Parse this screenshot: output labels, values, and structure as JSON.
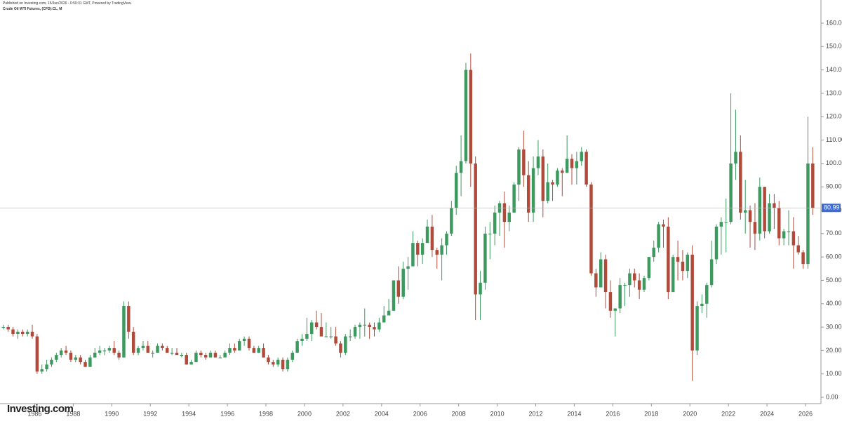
{
  "header": {
    "published": "Published on Investing.com, 15/Jun/2026 - 0:50:31 GMT, Powered by TradingView.",
    "title": "Crude Oil WTI Futures, (CFD):CL, M"
  },
  "logo": "Investing.com",
  "chart_data": {
    "type": "candlestick",
    "up_color": "#3c9a5f",
    "down_color": "#b04a3a",
    "last_price": {
      "value": 80.99,
      "label": "80.99"
    },
    "xlim": [
      1984.2,
      2026.8
    ],
    "ylim": [
      -2.7,
      169.9
    ],
    "xticks": [
      1986,
      1988,
      1990,
      1992,
      1994,
      1996,
      1998,
      2000,
      2002,
      2004,
      2006,
      2008,
      2010,
      2012,
      2014,
      2016,
      2018,
      2020,
      2022,
      2024,
      2026
    ],
    "yticks": [
      {
        "value": 0,
        "label": "0.00"
      },
      {
        "value": 10,
        "label": "10.00"
      },
      {
        "value": 20,
        "label": "20.00"
      },
      {
        "value": 30,
        "label": "30.00"
      },
      {
        "value": 40,
        "label": "40.00"
      },
      {
        "value": 50,
        "label": "50.00"
      },
      {
        "value": 60,
        "label": "60.00"
      },
      {
        "value": 70,
        "label": "70.00"
      },
      {
        "value": 80,
        "label": "80.00"
      },
      {
        "value": 90,
        "label": "90.00"
      },
      {
        "value": 100,
        "label": "100.00"
      },
      {
        "value": 110,
        "label": "110.00"
      },
      {
        "value": 120,
        "label": "120.00"
      },
      {
        "value": 130,
        "label": "130.00"
      },
      {
        "value": 140,
        "label": "140.00"
      },
      {
        "value": 150,
        "label": "150.00"
      },
      {
        "value": 160,
        "label": "160.00"
      }
    ],
    "x": [
      1984.375,
      1984.625,
      1984.875,
      1985.125,
      1985.375,
      1985.625,
      1985.875,
      1986.125,
      1986.375,
      1986.625,
      1986.875,
      1987.125,
      1987.375,
      1987.625,
      1987.875,
      1988.125,
      1988.375,
      1988.625,
      1988.875,
      1989.125,
      1989.375,
      1989.625,
      1989.875,
      1990.125,
      1990.375,
      1990.625,
      1990.875,
      1991.125,
      1991.375,
      1991.625,
      1991.875,
      1992.125,
      1992.375,
      1992.625,
      1992.875,
      1993.125,
      1993.375,
      1993.625,
      1993.875,
      1994.125,
      1994.375,
      1994.625,
      1994.875,
      1995.125,
      1995.375,
      1995.625,
      1995.875,
      1996.125,
      1996.375,
      1996.625,
      1996.875,
      1997.125,
      1997.375,
      1997.625,
      1997.875,
      1998.125,
      1998.375,
      1998.625,
      1998.875,
      1999.125,
      1999.375,
      1999.625,
      1999.875,
      2000.125,
      2000.375,
      2000.625,
      2000.875,
      2001.125,
      2001.375,
      2001.625,
      2001.875,
      2002.125,
      2002.375,
      2002.625,
      2002.875,
      2003.125,
      2003.375,
      2003.625,
      2003.875,
      2004.125,
      2004.375,
      2004.625,
      2004.875,
      2005.125,
      2005.375,
      2005.625,
      2005.875,
      2006.125,
      2006.375,
      2006.625,
      2006.875,
      2007.125,
      2007.375,
      2007.625,
      2007.875,
      2008.125,
      2008.375,
      2008.625,
      2008.875,
      2009.125,
      2009.375,
      2009.625,
      2009.875,
      2010.125,
      2010.375,
      2010.625,
      2010.875,
      2011.125,
      2011.375,
      2011.625,
      2011.875,
      2012.125,
      2012.375,
      2012.625,
      2012.875,
      2013.125,
      2013.375,
      2013.625,
      2013.875,
      2014.125,
      2014.375,
      2014.625,
      2014.875,
      2015.125,
      2015.375,
      2015.625,
      2015.875,
      2016.125,
      2016.375,
      2016.625,
      2016.875,
      2017.125,
      2017.375,
      2017.625,
      2017.875,
      2018.125,
      2018.375,
      2018.625,
      2018.875,
      2019.125,
      2019.375,
      2019.625,
      2019.875,
      2020.125,
      2020.375,
      2020.625,
      2020.875,
      2021.125,
      2021.375,
      2021.625,
      2021.875,
      2022.125,
      2022.375,
      2022.625,
      2022.875,
      2023.125,
      2023.375,
      2023.625,
      2023.875,
      2024.125,
      2024.375,
      2024.625,
      2024.875,
      2025.125,
      2025.375,
      2025.625,
      2025.875,
      2026.125,
      2026.375
    ],
    "ohlc": [
      [
        30,
        31,
        29,
        30
      ],
      [
        30,
        31,
        28,
        29
      ],
      [
        29,
        30,
        26,
        27
      ],
      [
        27,
        29,
        25,
        28
      ],
      [
        28,
        29,
        26,
        27
      ],
      [
        27,
        29,
        26,
        28
      ],
      [
        28,
        31,
        25,
        26
      ],
      [
        26,
        27,
        10,
        11
      ],
      [
        11,
        14,
        10,
        12
      ],
      [
        12,
        16,
        11,
        14
      ],
      [
        14,
        17,
        13,
        16
      ],
      [
        16,
        19,
        15,
        18
      ],
      [
        18,
        21,
        17,
        20
      ],
      [
        20,
        22,
        18,
        19
      ],
      [
        19,
        20,
        15,
        16
      ],
      [
        16,
        18,
        15,
        17
      ],
      [
        17,
        18,
        14,
        15
      ],
      [
        15,
        16,
        13,
        13
      ],
      [
        13,
        18,
        13,
        17
      ],
      [
        17,
        21,
        17,
        19
      ],
      [
        19,
        22,
        18,
        20
      ],
      [
        20,
        21,
        18,
        20
      ],
      [
        20,
        22,
        19,
        21
      ],
      [
        21,
        24,
        18,
        19
      ],
      [
        19,
        20,
        16,
        17
      ],
      [
        17,
        41,
        17,
        39
      ],
      [
        39,
        41,
        25,
        28
      ],
      [
        28,
        30,
        18,
        19
      ],
      [
        19,
        22,
        18,
        21
      ],
      [
        21,
        24,
        20,
        22
      ],
      [
        22,
        24,
        19,
        19
      ],
      [
        19,
        20,
        17,
        19
      ],
      [
        19,
        23,
        19,
        22
      ],
      [
        22,
        23,
        20,
        21
      ],
      [
        21,
        22,
        19,
        19
      ],
      [
        19,
        21,
        18,
        19
      ],
      [
        19,
        21,
        18,
        18
      ],
      [
        18,
        19,
        17,
        18
      ],
      [
        18,
        19,
        14,
        14
      ],
      [
        14,
        16,
        14,
        15
      ],
      [
        15,
        20,
        15,
        19
      ],
      [
        19,
        20,
        17,
        18
      ],
      [
        18,
        19,
        16,
        17
      ],
      [
        17,
        20,
        17,
        19
      ],
      [
        19,
        20,
        17,
        17
      ],
      [
        17,
        18,
        17,
        17
      ],
      [
        17,
        20,
        17,
        19
      ],
      [
        19,
        23,
        18,
        21
      ],
      [
        21,
        23,
        19,
        20
      ],
      [
        20,
        25,
        20,
        24
      ],
      [
        24,
        26,
        22,
        25
      ],
      [
        25,
        26,
        20,
        21
      ],
      [
        21,
        22,
        19,
        19
      ],
      [
        19,
        22,
        19,
        21
      ],
      [
        21,
        23,
        17,
        17
      ],
      [
        17,
        18,
        14,
        15
      ],
      [
        15,
        16,
        13,
        14
      ],
      [
        14,
        17,
        13,
        16
      ],
      [
        16,
        17,
        11,
        12
      ],
      [
        12,
        17,
        11,
        16
      ],
      [
        16,
        20,
        15,
        19
      ],
      [
        19,
        25,
        19,
        24
      ],
      [
        24,
        27,
        22,
        25
      ],
      [
        25,
        34,
        24,
        27
      ],
      [
        27,
        33,
        24,
        32
      ],
      [
        32,
        37,
        29,
        30
      ],
      [
        30,
        36,
        26,
        26
      ],
      [
        26,
        32,
        26,
        26
      ],
      [
        26,
        30,
        25,
        26
      ],
      [
        26,
        30,
        22,
        23
      ],
      [
        23,
        24,
        17,
        19
      ],
      [
        19,
        27,
        18,
        26
      ],
      [
        26,
        29,
        24,
        26
      ],
      [
        26,
        31,
        25,
        30
      ],
      [
        30,
        32,
        25,
        31
      ],
      [
        31,
        38,
        26,
        31
      ],
      [
        31,
        32,
        25,
        30
      ],
      [
        30,
        32,
        26,
        29
      ],
      [
        29,
        34,
        28,
        32
      ],
      [
        32,
        39,
        32,
        35
      ],
      [
        35,
        42,
        35,
        37
      ],
      [
        37,
        50,
        37,
        50
      ],
      [
        50,
        56,
        40,
        43
      ],
      [
        43,
        58,
        42,
        55
      ],
      [
        55,
        60,
        46,
        56
      ],
      [
        56,
        71,
        56,
        66
      ],
      [
        66,
        67,
        56,
        61
      ],
      [
        61,
        68,
        57,
        66
      ],
      [
        66,
        76,
        66,
        73
      ],
      [
        73,
        78,
        60,
        63
      ],
      [
        63,
        64,
        55,
        61
      ],
      [
        61,
        68,
        50,
        65
      ],
      [
        65,
        71,
        61,
        70
      ],
      [
        70,
        84,
        69,
        81
      ],
      [
        81,
        99,
        78,
        96
      ],
      [
        96,
        112,
        86,
        101
      ],
      [
        101,
        143,
        100,
        140
      ],
      [
        140,
        147,
        90,
        100
      ],
      [
        100,
        103,
        33,
        44
      ],
      [
        44,
        54,
        33,
        49
      ],
      [
        49,
        73,
        46,
        70
      ],
      [
        70,
        75,
        59,
        70
      ],
      [
        70,
        82,
        65,
        79
      ],
      [
        79,
        84,
        69,
        83
      ],
      [
        83,
        88,
        64,
        75
      ],
      [
        75,
        82,
        71,
        79
      ],
      [
        79,
        92,
        79,
        91
      ],
      [
        91,
        107,
        84,
        106
      ],
      [
        106,
        114,
        90,
        95
      ],
      [
        95,
        101,
        75,
        79
      ],
      [
        79,
        103,
        75,
        98
      ],
      [
        98,
        110,
        95,
        103
      ],
      [
        103,
        106,
        77,
        84
      ],
      [
        84,
        100,
        83,
        92
      ],
      [
        92,
        93,
        84,
        91
      ],
      [
        91,
        98,
        90,
        97
      ],
      [
        97,
        98,
        86,
        96
      ],
      [
        96,
        112,
        96,
        102
      ],
      [
        102,
        104,
        91,
        98
      ],
      [
        98,
        105,
        91,
        101
      ],
      [
        101,
        107,
        99,
        105
      ],
      [
        105,
        106,
        90,
        91
      ],
      [
        91,
        92,
        52,
        53
      ],
      [
        53,
        55,
        43,
        47
      ],
      [
        47,
        62,
        47,
        59
      ],
      [
        59,
        61,
        38,
        45
      ],
      [
        45,
        50,
        34,
        37
      ],
      [
        37,
        38,
        26,
        38
      ],
      [
        38,
        51,
        36,
        48
      ],
      [
        48,
        49,
        39,
        48
      ],
      [
        48,
        55,
        43,
        53
      ],
      [
        53,
        55,
        47,
        50
      ],
      [
        50,
        53,
        42,
        46
      ],
      [
        46,
        52,
        45,
        51
      ],
      [
        51,
        60,
        50,
        60
      ],
      [
        60,
        67,
        58,
        64
      ],
      [
        64,
        75,
        62,
        74
      ],
      [
        74,
        76,
        64,
        73
      ],
      [
        73,
        77,
        42,
        45
      ],
      [
        45,
        61,
        45,
        60
      ],
      [
        60,
        67,
        50,
        58
      ],
      [
        58,
        63,
        50,
        54
      ],
      [
        54,
        62,
        51,
        61
      ],
      [
        61,
        65,
        7,
        20
      ],
      [
        20,
        41,
        18,
        39
      ],
      [
        39,
        44,
        36,
        40
      ],
      [
        40,
        49,
        34,
        48
      ],
      [
        48,
        67,
        47,
        59
      ],
      [
        59,
        74,
        57,
        73
      ],
      [
        73,
        77,
        61,
        75
      ],
      [
        75,
        85,
        62,
        75
      ],
      [
        75,
        130,
        74,
        100
      ],
      [
        100,
        123,
        93,
        105
      ],
      [
        105,
        112,
        76,
        79
      ],
      [
        79,
        93,
        70,
        80
      ],
      [
        80,
        82,
        64,
        75
      ],
      [
        75,
        83,
        63,
        70
      ],
      [
        70,
        94,
        67,
        90
      ],
      [
        90,
        90,
        68,
        71
      ],
      [
        71,
        87,
        70,
        83
      ],
      [
        83,
        87,
        72,
        81
      ],
      [
        81,
        84,
        65,
        68
      ],
      [
        68,
        72,
        65,
        71
      ],
      [
        71,
        80,
        65,
        71
      ],
      [
        71,
        77,
        55,
        65
      ],
      [
        65,
        69,
        61,
        62
      ],
      [
        62,
        63,
        55,
        57
      ],
      [
        57,
        120,
        55,
        100
      ],
      [
        100,
        107,
        78,
        81
      ]
    ]
  }
}
